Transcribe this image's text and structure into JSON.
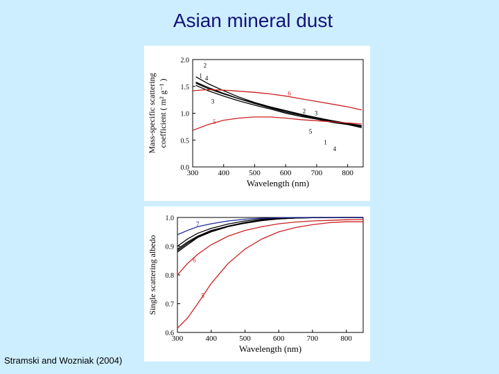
{
  "slide": {
    "title": "Asian mineral dust",
    "citation": "Stramski and Wozniak (2004)"
  },
  "colors": {
    "background": "#cdeefe",
    "title": "#12127a",
    "black_series": "#000000",
    "red_series": "#cc1f1f",
    "blue_series": "#1a2a9a"
  },
  "chart_data": [
    {
      "type": "line",
      "xlabel": "Wavelength (nm)",
      "ylabel_line1": "Mass-specific scattering",
      "ylabel_line2": "coefficient ( m² g⁻¹ )",
      "xlim": [
        300,
        850
      ],
      "ylim": [
        0.0,
        2.0
      ],
      "xticks": [
        "300",
        "400",
        "500",
        "600",
        "700",
        "800"
      ],
      "yticks": [
        "0.0",
        "0.5",
        "1.0",
        "1.5",
        "2.0"
      ],
      "series": [
        {
          "name": "1",
          "color": "black",
          "x": [
            310,
            350,
            400,
            450,
            500,
            550,
            600,
            650,
            700,
            750,
            800,
            845
          ],
          "y": [
            1.58,
            1.48,
            1.37,
            1.27,
            1.18,
            1.1,
            1.02,
            0.96,
            0.9,
            0.85,
            0.8,
            0.75
          ]
        },
        {
          "name": "2",
          "color": "black",
          "x": [
            310,
            350,
            400,
            450,
            500,
            550,
            600,
            650,
            700,
            750,
            800,
            845
          ],
          "y": [
            1.68,
            1.55,
            1.42,
            1.3,
            1.2,
            1.12,
            1.05,
            0.98,
            0.92,
            0.86,
            0.81,
            0.76
          ]
        },
        {
          "name": "3",
          "color": "black",
          "x": [
            310,
            350,
            400,
            450,
            500,
            550,
            600,
            650,
            700,
            750,
            800,
            845
          ],
          "y": [
            1.52,
            1.42,
            1.32,
            1.23,
            1.15,
            1.08,
            1.0,
            0.94,
            0.89,
            0.83,
            0.79,
            0.73
          ]
        },
        {
          "name": "4",
          "color": "black",
          "x": [
            310,
            350,
            400,
            450,
            500,
            550,
            600,
            650,
            700,
            750,
            800,
            845
          ],
          "y": [
            1.56,
            1.46,
            1.36,
            1.27,
            1.19,
            1.11,
            1.04,
            0.97,
            0.91,
            0.86,
            0.81,
            0.77
          ]
        },
        {
          "name": "5",
          "color": "red",
          "x": [
            300,
            350,
            400,
            450,
            500,
            550,
            600,
            650,
            700,
            750,
            800,
            845
          ],
          "y": [
            0.68,
            0.79,
            0.87,
            0.91,
            0.93,
            0.93,
            0.91,
            0.88,
            0.86,
            0.84,
            0.82,
            0.8
          ]
        },
        {
          "name": "6",
          "color": "red",
          "x": [
            300,
            350,
            400,
            450,
            500,
            550,
            600,
            650,
            700,
            750,
            800,
            845
          ],
          "y": [
            1.42,
            1.44,
            1.43,
            1.41,
            1.39,
            1.36,
            1.32,
            1.27,
            1.22,
            1.17,
            1.12,
            1.06
          ]
        }
      ],
      "annotations": [
        "2",
        "1",
        "4",
        "3",
        "6",
        "5",
        "2",
        "3",
        "5",
        "1",
        "4"
      ]
    },
    {
      "type": "line",
      "xlabel": "Wavelength (nm)",
      "ylabel": "Single scattering albedo",
      "xlim": [
        300,
        850
      ],
      "ylim": [
        0.6,
        1.0
      ],
      "xticks": [
        "300",
        "400",
        "500",
        "600",
        "700",
        "800"
      ],
      "yticks": [
        "0.6",
        "0.7",
        "0.8",
        "0.9",
        "1.0"
      ],
      "series": [
        {
          "name": "1",
          "color": "black",
          "x": [
            300,
            330,
            360,
            400,
            450,
            500,
            550,
            600,
            650,
            700,
            800,
            850
          ],
          "y": [
            0.89,
            0.915,
            0.935,
            0.955,
            0.97,
            0.982,
            0.99,
            0.995,
            0.998,
            0.999,
            1.0,
            1.0
          ]
        },
        {
          "name": "2",
          "color": "black",
          "x": [
            300,
            330,
            360,
            400,
            450,
            500,
            550,
            600,
            650,
            700,
            800,
            850
          ],
          "y": [
            0.9,
            0.925,
            0.945,
            0.962,
            0.977,
            0.988,
            0.994,
            0.997,
            0.999,
            1.0,
            1.0,
            1.0
          ]
        },
        {
          "name": "3",
          "color": "black",
          "x": [
            300,
            330,
            360,
            400,
            450,
            500,
            550,
            600,
            650,
            700,
            800,
            850
          ],
          "y": [
            0.88,
            0.905,
            0.93,
            0.95,
            0.968,
            0.98,
            0.989,
            0.995,
            0.998,
            0.999,
            1.0,
            1.0
          ]
        },
        {
          "name": "4",
          "color": "black",
          "x": [
            300,
            330,
            360,
            400,
            450,
            500,
            550,
            600,
            650,
            700,
            800,
            850
          ],
          "y": [
            0.885,
            0.91,
            0.932,
            0.952,
            0.97,
            0.983,
            0.991,
            0.996,
            0.998,
            1.0,
            1.0,
            1.0
          ]
        },
        {
          "name": "5",
          "color": "red",
          "x": [
            300,
            330,
            360,
            400,
            450,
            500,
            550,
            600,
            650,
            700,
            750,
            800,
            850
          ],
          "y": [
            0.615,
            0.65,
            0.7,
            0.77,
            0.84,
            0.89,
            0.925,
            0.95,
            0.965,
            0.975,
            0.982,
            0.985,
            0.985
          ]
        },
        {
          "name": "6",
          "color": "red",
          "x": [
            300,
            330,
            360,
            400,
            450,
            500,
            550,
            600,
            650,
            700,
            750,
            800,
            850
          ],
          "y": [
            0.8,
            0.84,
            0.872,
            0.905,
            0.935,
            0.955,
            0.968,
            0.978,
            0.984,
            0.988,
            0.99,
            0.992,
            0.993
          ]
        },
        {
          "name": "7",
          "color": "blue",
          "x": [
            300,
            330,
            360,
            400,
            450,
            500,
            550,
            600,
            650,
            700,
            800,
            850
          ],
          "y": [
            0.94,
            0.955,
            0.968,
            0.978,
            0.988,
            0.994,
            0.997,
            0.999,
            1.0,
            1.0,
            1.0,
            1.0
          ]
        }
      ],
      "annotations": [
        "7",
        "6",
        "5"
      ]
    }
  ]
}
